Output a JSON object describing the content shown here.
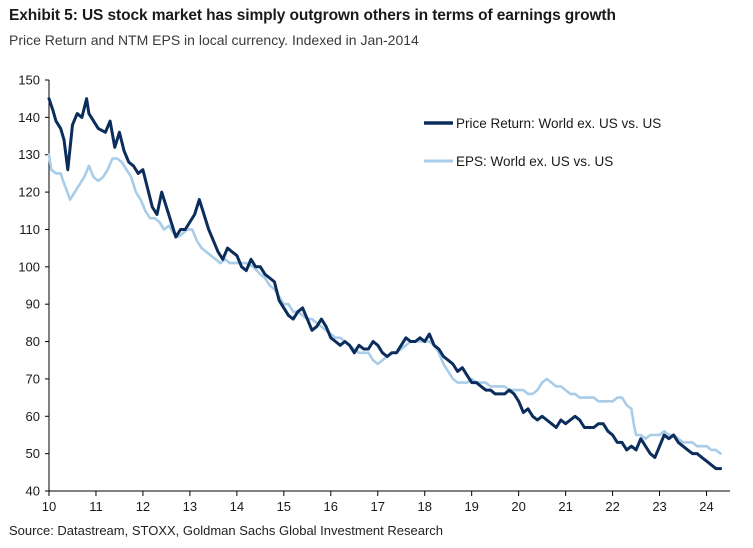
{
  "header": {
    "title": "Exhibit 5: US stock market has simply outgrown others in terms of earnings growth",
    "subtitle": "Price Return and NTM EPS in local currency. Indexed in Jan-2014"
  },
  "footer": {
    "source": "Source: Datastream, STOXX, Goldman Sachs Global Investment Research"
  },
  "chart_data": {
    "type": "line",
    "xlim": [
      2010,
      2024.5
    ],
    "ylim": [
      40,
      150
    ],
    "x_ticks": [
      2010,
      2011,
      2012,
      2013,
      2014,
      2015,
      2016,
      2017,
      2018,
      2019,
      2020,
      2021,
      2022,
      2023,
      2024
    ],
    "x_tick_labels": [
      "10",
      "11",
      "12",
      "13",
      "14",
      "15",
      "16",
      "17",
      "18",
      "19",
      "20",
      "21",
      "22",
      "23",
      "24"
    ],
    "y_ticks": [
      40,
      50,
      60,
      70,
      80,
      90,
      100,
      110,
      120,
      130,
      140,
      150
    ],
    "y_tick_labels": [
      "40",
      "50",
      "60",
      "70",
      "80",
      "90",
      "100",
      "110",
      "120",
      "130",
      "140",
      "150"
    ],
    "grid": false,
    "legend_position": "top-right",
    "series": [
      {
        "name": "Price Return: World ex. US vs. US",
        "color": "#0b2d5c",
        "points": [
          [
            2010.0,
            145
          ],
          [
            2010.08,
            142
          ],
          [
            2010.15,
            139
          ],
          [
            2010.25,
            137
          ],
          [
            2010.32,
            134
          ],
          [
            2010.4,
            126
          ],
          [
            2010.5,
            138
          ],
          [
            2010.6,
            141
          ],
          [
            2010.7,
            140
          ],
          [
            2010.8,
            145
          ],
          [
            2010.85,
            141
          ],
          [
            2010.95,
            139
          ],
          [
            2011.05,
            137
          ],
          [
            2011.2,
            136
          ],
          [
            2011.3,
            139
          ],
          [
            2011.4,
            132
          ],
          [
            2011.5,
            136
          ],
          [
            2011.6,
            131
          ],
          [
            2011.7,
            128
          ],
          [
            2011.8,
            127
          ],
          [
            2011.9,
            125
          ],
          [
            2012.0,
            126
          ],
          [
            2012.1,
            121
          ],
          [
            2012.2,
            116
          ],
          [
            2012.3,
            114
          ],
          [
            2012.4,
            120
          ],
          [
            2012.5,
            116
          ],
          [
            2012.6,
            112
          ],
          [
            2012.7,
            108
          ],
          [
            2012.8,
            110
          ],
          [
            2012.9,
            110
          ],
          [
            2013.0,
            112
          ],
          [
            2013.1,
            114
          ],
          [
            2013.2,
            118
          ],
          [
            2013.3,
            114
          ],
          [
            2013.4,
            110
          ],
          [
            2013.5,
            107
          ],
          [
            2013.6,
            104
          ],
          [
            2013.7,
            102
          ],
          [
            2013.8,
            105
          ],
          [
            2013.9,
            104
          ],
          [
            2014.0,
            103
          ],
          [
            2014.1,
            100
          ],
          [
            2014.2,
            99
          ],
          [
            2014.3,
            102
          ],
          [
            2014.4,
            100
          ],
          [
            2014.5,
            100
          ],
          [
            2014.6,
            98
          ],
          [
            2014.7,
            97
          ],
          [
            2014.8,
            96
          ],
          [
            2014.9,
            91
          ],
          [
            2015.0,
            89
          ],
          [
            2015.1,
            87
          ],
          [
            2015.2,
            86
          ],
          [
            2015.3,
            88
          ],
          [
            2015.4,
            89
          ],
          [
            2015.5,
            86
          ],
          [
            2015.6,
            83
          ],
          [
            2015.7,
            84
          ],
          [
            2015.8,
            86
          ],
          [
            2015.9,
            84
          ],
          [
            2016.0,
            81
          ],
          [
            2016.1,
            80
          ],
          [
            2016.2,
            79
          ],
          [
            2016.3,
            80
          ],
          [
            2016.4,
            79
          ],
          [
            2016.5,
            77
          ],
          [
            2016.6,
            79
          ],
          [
            2016.7,
            78
          ],
          [
            2016.8,
            78
          ],
          [
            2016.9,
            80
          ],
          [
            2017.0,
            79
          ],
          [
            2017.1,
            77
          ],
          [
            2017.2,
            76
          ],
          [
            2017.3,
            77
          ],
          [
            2017.4,
            77
          ],
          [
            2017.5,
            79
          ],
          [
            2017.6,
            81
          ],
          [
            2017.7,
            80
          ],
          [
            2017.8,
            80
          ],
          [
            2017.9,
            81
          ],
          [
            2018.0,
            80
          ],
          [
            2018.1,
            82
          ],
          [
            2018.2,
            79
          ],
          [
            2018.3,
            78
          ],
          [
            2018.4,
            76
          ],
          [
            2018.5,
            75
          ],
          [
            2018.6,
            74
          ],
          [
            2018.7,
            72
          ],
          [
            2018.8,
            73
          ],
          [
            2018.9,
            71
          ],
          [
            2019.0,
            69
          ],
          [
            2019.1,
            69
          ],
          [
            2019.2,
            68
          ],
          [
            2019.3,
            67
          ],
          [
            2019.4,
            67
          ],
          [
            2019.5,
            66
          ],
          [
            2019.6,
            66
          ],
          [
            2019.7,
            66
          ],
          [
            2019.8,
            67
          ],
          [
            2019.9,
            66
          ],
          [
            2020.0,
            64
          ],
          [
            2020.1,
            61
          ],
          [
            2020.2,
            62
          ],
          [
            2020.3,
            60
          ],
          [
            2020.4,
            59
          ],
          [
            2020.5,
            60
          ],
          [
            2020.6,
            59
          ],
          [
            2020.7,
            58
          ],
          [
            2020.8,
            57
          ],
          [
            2020.9,
            59
          ],
          [
            2021.0,
            58
          ],
          [
            2021.1,
            59
          ],
          [
            2021.2,
            60
          ],
          [
            2021.3,
            59
          ],
          [
            2021.4,
            57
          ],
          [
            2021.5,
            57
          ],
          [
            2021.6,
            57
          ],
          [
            2021.7,
            58
          ],
          [
            2021.8,
            58
          ],
          [
            2021.9,
            56
          ],
          [
            2022.0,
            55
          ],
          [
            2022.1,
            53
          ],
          [
            2022.2,
            53
          ],
          [
            2022.3,
            51
          ],
          [
            2022.4,
            52
          ],
          [
            2022.5,
            51
          ],
          [
            2022.6,
            54
          ],
          [
            2022.7,
            52
          ],
          [
            2022.8,
            50
          ],
          [
            2022.9,
            49
          ],
          [
            2023.0,
            52
          ],
          [
            2023.1,
            55
          ],
          [
            2023.2,
            54
          ],
          [
            2023.3,
            55
          ],
          [
            2023.4,
            53
          ],
          [
            2023.5,
            52
          ],
          [
            2023.6,
            51
          ],
          [
            2023.7,
            50
          ],
          [
            2023.8,
            50
          ],
          [
            2023.9,
            49
          ],
          [
            2024.0,
            48
          ],
          [
            2024.1,
            47
          ],
          [
            2024.2,
            46
          ],
          [
            2024.3,
            46
          ]
        ]
      },
      {
        "name": "EPS: World ex. US vs. US",
        "color": "#a9cde8",
        "points": [
          [
            2010.0,
            130
          ],
          [
            2010.05,
            126
          ],
          [
            2010.15,
            125
          ],
          [
            2010.25,
            125
          ],
          [
            2010.3,
            123
          ],
          [
            2010.45,
            118
          ],
          [
            2010.55,
            120
          ],
          [
            2010.65,
            122
          ],
          [
            2010.75,
            124
          ],
          [
            2010.85,
            127
          ],
          [
            2010.95,
            124
          ],
          [
            2011.05,
            123
          ],
          [
            2011.15,
            124
          ],
          [
            2011.25,
            126
          ],
          [
            2011.35,
            129
          ],
          [
            2011.45,
            129
          ],
          [
            2011.55,
            128
          ],
          [
            2011.65,
            126
          ],
          [
            2011.75,
            124
          ],
          [
            2011.85,
            120
          ],
          [
            2011.95,
            118
          ],
          [
            2012.05,
            115
          ],
          [
            2012.15,
            113
          ],
          [
            2012.25,
            113
          ],
          [
            2012.35,
            112
          ],
          [
            2012.45,
            110
          ],
          [
            2012.55,
            111
          ],
          [
            2012.65,
            109
          ],
          [
            2012.75,
            108
          ],
          [
            2012.85,
            109
          ],
          [
            2012.95,
            110
          ],
          [
            2013.05,
            110
          ],
          [
            2013.15,
            107
          ],
          [
            2013.25,
            105
          ],
          [
            2013.35,
            104
          ],
          [
            2013.45,
            103
          ],
          [
            2013.55,
            102
          ],
          [
            2013.65,
            101
          ],
          [
            2013.75,
            102
          ],
          [
            2013.85,
            101
          ],
          [
            2013.95,
            101
          ],
          [
            2014.05,
            101
          ],
          [
            2014.2,
            101
          ],
          [
            2014.35,
            100
          ],
          [
            2014.5,
            98
          ],
          [
            2014.6,
            97
          ],
          [
            2014.7,
            95
          ],
          [
            2014.8,
            94
          ],
          [
            2014.9,
            92
          ],
          [
            2015.0,
            90
          ],
          [
            2015.1,
            90
          ],
          [
            2015.2,
            88
          ],
          [
            2015.3,
            88
          ],
          [
            2015.4,
            87
          ],
          [
            2015.5,
            86
          ],
          [
            2015.6,
            86
          ],
          [
            2015.7,
            85
          ],
          [
            2015.8,
            84
          ],
          [
            2015.9,
            83
          ],
          [
            2016.0,
            82
          ],
          [
            2016.1,
            81
          ],
          [
            2016.2,
            81
          ],
          [
            2016.3,
            80
          ],
          [
            2016.4,
            79
          ],
          [
            2016.5,
            78
          ],
          [
            2016.6,
            77
          ],
          [
            2016.7,
            77
          ],
          [
            2016.8,
            77
          ],
          [
            2016.9,
            75
          ],
          [
            2017.0,
            74
          ],
          [
            2017.1,
            75
          ],
          [
            2017.2,
            76
          ],
          [
            2017.3,
            77
          ],
          [
            2017.4,
            77
          ],
          [
            2017.5,
            78
          ],
          [
            2017.6,
            79
          ],
          [
            2017.7,
            80
          ],
          [
            2017.8,
            80
          ],
          [
            2017.9,
            80
          ],
          [
            2018.0,
            80
          ],
          [
            2018.1,
            80
          ],
          [
            2018.2,
            79
          ],
          [
            2018.3,
            77
          ],
          [
            2018.4,
            74
          ],
          [
            2018.5,
            72
          ],
          [
            2018.6,
            70
          ],
          [
            2018.7,
            69
          ],
          [
            2018.8,
            69
          ],
          [
            2018.9,
            69
          ],
          [
            2019.0,
            70
          ],
          [
            2019.1,
            69
          ],
          [
            2019.2,
            69
          ],
          [
            2019.3,
            69
          ],
          [
            2019.4,
            68
          ],
          [
            2019.5,
            68
          ],
          [
            2019.6,
            68
          ],
          [
            2019.7,
            68
          ],
          [
            2019.8,
            67
          ],
          [
            2019.9,
            67
          ],
          [
            2020.0,
            67
          ],
          [
            2020.1,
            67
          ],
          [
            2020.2,
            66
          ],
          [
            2020.3,
            66
          ],
          [
            2020.4,
            67
          ],
          [
            2020.5,
            69
          ],
          [
            2020.6,
            70
          ],
          [
            2020.7,
            69
          ],
          [
            2020.8,
            68
          ],
          [
            2020.9,
            68
          ],
          [
            2021.0,
            67
          ],
          [
            2021.1,
            66
          ],
          [
            2021.2,
            66
          ],
          [
            2021.3,
            65
          ],
          [
            2021.4,
            65
          ],
          [
            2021.5,
            65
          ],
          [
            2021.6,
            65
          ],
          [
            2021.7,
            64
          ],
          [
            2021.8,
            64
          ],
          [
            2021.9,
            64
          ],
          [
            2022.0,
            64
          ],
          [
            2022.1,
            65
          ],
          [
            2022.2,
            65
          ],
          [
            2022.3,
            63
          ],
          [
            2022.4,
            62
          ],
          [
            2022.45,
            58
          ],
          [
            2022.5,
            55
          ],
          [
            2022.6,
            55
          ],
          [
            2022.7,
            54
          ],
          [
            2022.8,
            55
          ],
          [
            2022.9,
            55
          ],
          [
            2023.0,
            55
          ],
          [
            2023.1,
            56
          ],
          [
            2023.2,
            55
          ],
          [
            2023.3,
            55
          ],
          [
            2023.4,
            54
          ],
          [
            2023.5,
            53
          ],
          [
            2023.6,
            53
          ],
          [
            2023.7,
            53
          ],
          [
            2023.8,
            52
          ],
          [
            2023.9,
            52
          ],
          [
            2024.0,
            52
          ],
          [
            2024.1,
            51
          ],
          [
            2024.2,
            51
          ],
          [
            2024.3,
            50
          ]
        ]
      }
    ]
  }
}
